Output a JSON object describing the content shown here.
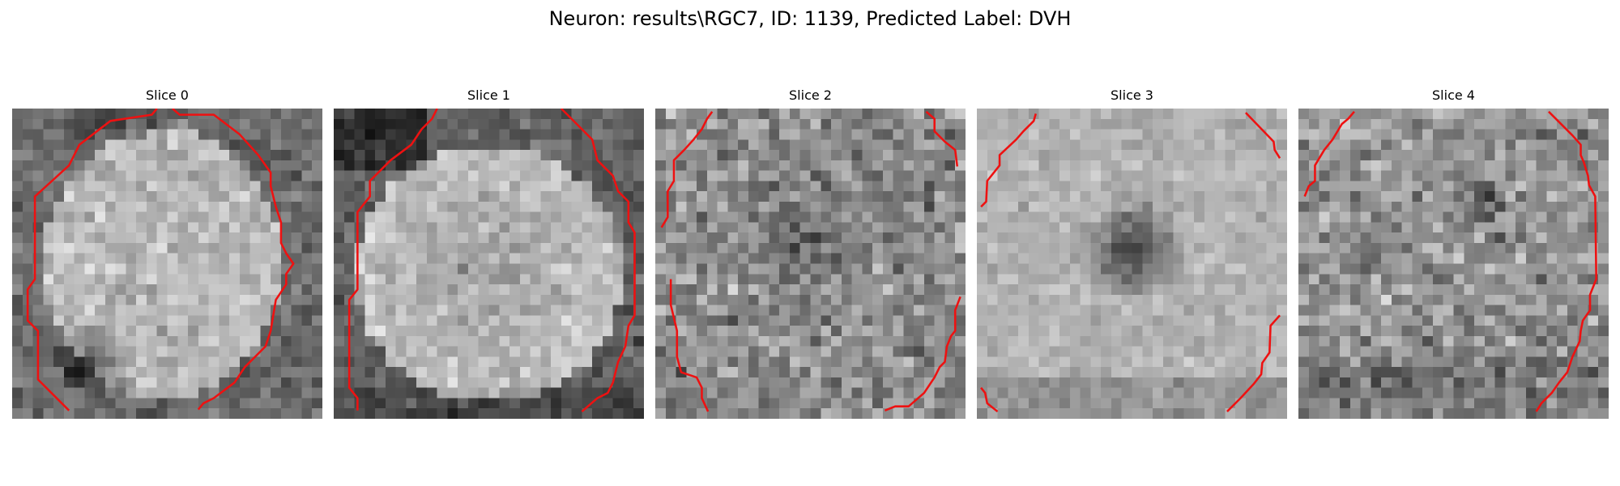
{
  "figure": {
    "title": "Neuron: results\\RGC7, ID: 1139, Predicted Label: DVH"
  },
  "panels": [
    {
      "title": "Slice 0"
    },
    {
      "title": "Slice 1"
    },
    {
      "title": "Slice 2"
    },
    {
      "title": "Slice 3"
    },
    {
      "title": "Slice 4"
    }
  ],
  "colors": {
    "contour": "#ee1111",
    "background": "#ffffff"
  }
}
